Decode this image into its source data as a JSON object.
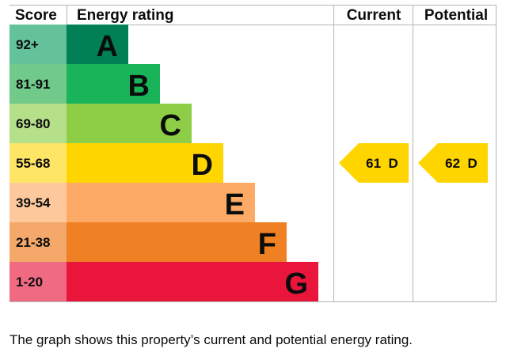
{
  "chart_data": {
    "type": "bar",
    "headers": {
      "score": "Score",
      "rating": "Energy rating",
      "current": "Current",
      "potential": "Potential"
    },
    "bands": [
      {
        "letter": "A",
        "range": "92+",
        "color": "#008054",
        "score_color": "#64c29a"
      },
      {
        "letter": "B",
        "range": "81-91",
        "color": "#19b459",
        "score_color": "#71c98a"
      },
      {
        "letter": "C",
        "range": "69-80",
        "color": "#8dce46",
        "score_color": "#b6df8a"
      },
      {
        "letter": "D",
        "range": "55-68",
        "color": "#ffd500",
        "score_color": "#ffe566"
      },
      {
        "letter": "E",
        "range": "39-54",
        "color": "#fcaa65",
        "score_color": "#fdc89b"
      },
      {
        "letter": "F",
        "range": "21-38",
        "color": "#ef8023",
        "score_color": "#f4a86a"
      },
      {
        "letter": "G",
        "range": "1-20",
        "color": "#e9153b",
        "score_color": "#f06a82"
      }
    ],
    "current": {
      "value": 61,
      "letter": "D",
      "label": "61  D",
      "color": "#ffd500"
    },
    "potential": {
      "value": 62,
      "letter": "D",
      "label": "62  D",
      "color": "#ffd500"
    }
  },
  "caption": "The graph shows this property’s current and potential energy rating."
}
